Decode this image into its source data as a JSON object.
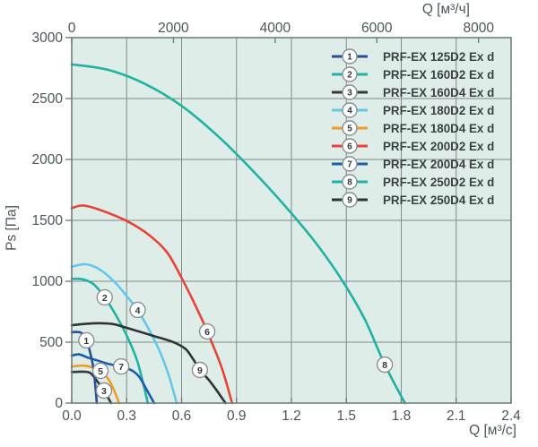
{
  "page": {
    "background": "#ffffff"
  },
  "chart_data": {
    "type": "line",
    "title": "",
    "plot_background": "#dfede9",
    "grid_color": "#7d8c89",
    "border_color": "#6e7f7c",
    "tick_text_color": "#4b565a",
    "legend_text_color": "#3a4144",
    "marker_circle_fill": "#fdfefe",
    "marker_circle_stroke": "#8a9092",
    "x_axis_bottom": {
      "label": "Q [м³/с]",
      "range": [
        0,
        2.4
      ],
      "ticks": [
        {
          "v": 0.0,
          "label": "0.0"
        },
        {
          "v": 0.3,
          "label": "0.3"
        },
        {
          "v": 0.6,
          "label": "0.6"
        },
        {
          "v": 0.9,
          "label": "0.9"
        },
        {
          "v": 1.2,
          "label": "1.2"
        },
        {
          "v": 1.5,
          "label": "1.5"
        },
        {
          "v": 1.8,
          "label": "1.8"
        },
        {
          "v": 2.1,
          "label": "2.1"
        },
        {
          "v": 2.4,
          "label": "2.4"
        }
      ]
    },
    "x_axis_top": {
      "label": "Q [м³/ч]",
      "range": [
        0,
        8640
      ],
      "ticks": [
        {
          "v": 0,
          "label": "0"
        },
        {
          "v": 2000,
          "label": "2000"
        },
        {
          "v": 4000,
          "label": "4000"
        },
        {
          "v": 6000,
          "label": "6000"
        },
        {
          "v": 8000,
          "label": "8000"
        }
      ]
    },
    "y_axis": {
      "label": "Ps [Па]",
      "range": [
        0,
        3000
      ],
      "ticks": [
        {
          "v": 0,
          "label": "0"
        },
        {
          "v": 500,
          "label": "500"
        },
        {
          "v": 1000,
          "label": "1000"
        },
        {
          "v": 1500,
          "label": "1500"
        },
        {
          "v": 2000,
          "label": "2000"
        },
        {
          "v": 2500,
          "label": "2500"
        },
        {
          "v": 3000,
          "label": "3000"
        }
      ]
    },
    "legend_position": "top-right",
    "grid": true,
    "series": [
      {
        "id": "1",
        "name": "PRF-EX 125D2 Ex d",
        "color": "#264f97",
        "marker_at": [
          0.08,
          515
        ],
        "points": [
          [
            0,
            582
          ],
          [
            0.05,
            578
          ],
          [
            0.08,
            515
          ],
          [
            0.1,
            420
          ],
          [
            0.12,
            270
          ],
          [
            0.137,
            0
          ]
        ]
      },
      {
        "id": "2",
        "name": "PRF-EX 160D2 Ex d",
        "color": "#20b2a3",
        "marker_at": [
          0.18,
          868
        ],
        "points": [
          [
            0,
            1020
          ],
          [
            0.06,
            1016
          ],
          [
            0.12,
            975
          ],
          [
            0.18,
            868
          ],
          [
            0.24,
            725
          ],
          [
            0.3,
            555
          ],
          [
            0.36,
            335
          ],
          [
            0.416,
            0
          ]
        ]
      },
      {
        "id": "3",
        "name": "PRF-EX 160D4 Ex d",
        "color": "#35393c",
        "marker_at": [
          0.176,
          103
        ],
        "points": [
          [
            0,
            255
          ],
          [
            0.05,
            258
          ],
          [
            0.1,
            248
          ],
          [
            0.14,
            178
          ],
          [
            0.176,
            103
          ],
          [
            0.215,
            0
          ]
        ]
      },
      {
        "id": "4",
        "name": "PRF-EX 180D2 Ex d",
        "color": "#63c7ec",
        "marker_at": [
          0.36,
          765
        ],
        "points": [
          [
            0,
            1120
          ],
          [
            0.08,
            1140
          ],
          [
            0.16,
            1090
          ],
          [
            0.24,
            985
          ],
          [
            0.3,
            878
          ],
          [
            0.36,
            765
          ],
          [
            0.42,
            608
          ],
          [
            0.48,
            428
          ],
          [
            0.53,
            228
          ],
          [
            0.573,
            0
          ]
        ]
      },
      {
        "id": "5",
        "name": "PRF-EX 180D4 Ex d",
        "color": "#f59b24",
        "marker_at": [
          0.157,
          265
        ],
        "points": [
          [
            0,
            300
          ],
          [
            0.06,
            308
          ],
          [
            0.11,
            294
          ],
          [
            0.157,
            265
          ],
          [
            0.2,
            198
          ],
          [
            0.23,
            108
          ],
          [
            0.259,
            0
          ]
        ]
      },
      {
        "id": "6",
        "name": "PRF-EX 200D2 Ex d",
        "color": "#e94237",
        "marker_at": [
          0.74,
          588
        ],
        "points": [
          [
            0,
            1600
          ],
          [
            0.06,
            1622
          ],
          [
            0.15,
            1588
          ],
          [
            0.3,
            1495
          ],
          [
            0.42,
            1382
          ],
          [
            0.52,
            1238
          ],
          [
            0.6,
            1028
          ],
          [
            0.68,
            788
          ],
          [
            0.74,
            588
          ],
          [
            0.82,
            288
          ],
          [
            0.876,
            0
          ]
        ]
      },
      {
        "id": "7",
        "name": "PRF-EX 200D4 Ex d",
        "color": "#1c5dab",
        "marker_at": [
          0.27,
          301
        ],
        "points": [
          [
            0,
            390
          ],
          [
            0.04,
            400
          ],
          [
            0.09,
            372
          ],
          [
            0.14,
            350
          ],
          [
            0.2,
            322
          ],
          [
            0.27,
            301
          ],
          [
            0.33,
            266
          ],
          [
            0.37,
            213
          ],
          [
            0.41,
            108
          ],
          [
            0.45,
            0
          ]
        ]
      },
      {
        "id": "8",
        "name": "PRF-EX 250D2 Ex d",
        "color": "#20b2a3",
        "marker_at": [
          1.71,
          316
        ],
        "points": [
          [
            0,
            2780
          ],
          [
            0.2,
            2735
          ],
          [
            0.4,
            2620
          ],
          [
            0.6,
            2440
          ],
          [
            0.8,
            2190
          ],
          [
            1.0,
            1890
          ],
          [
            1.2,
            1558
          ],
          [
            1.35,
            1282
          ],
          [
            1.48,
            1000
          ],
          [
            1.6,
            690
          ],
          [
            1.71,
            316
          ],
          [
            1.82,
            0
          ]
        ]
      },
      {
        "id": "9",
        "name": "PRF-EX 250D4 Ex d",
        "color": "#2f3336",
        "marker_at": [
          0.7,
          272
        ],
        "points": [
          [
            0,
            640
          ],
          [
            0.12,
            655
          ],
          [
            0.22,
            650
          ],
          [
            0.3,
            618
          ],
          [
            0.45,
            550
          ],
          [
            0.55,
            503
          ],
          [
            0.62,
            446
          ],
          [
            0.66,
            368
          ],
          [
            0.7,
            272
          ],
          [
            0.75,
            188
          ],
          [
            0.79,
            108
          ],
          [
            0.84,
            0
          ]
        ]
      }
    ]
  }
}
